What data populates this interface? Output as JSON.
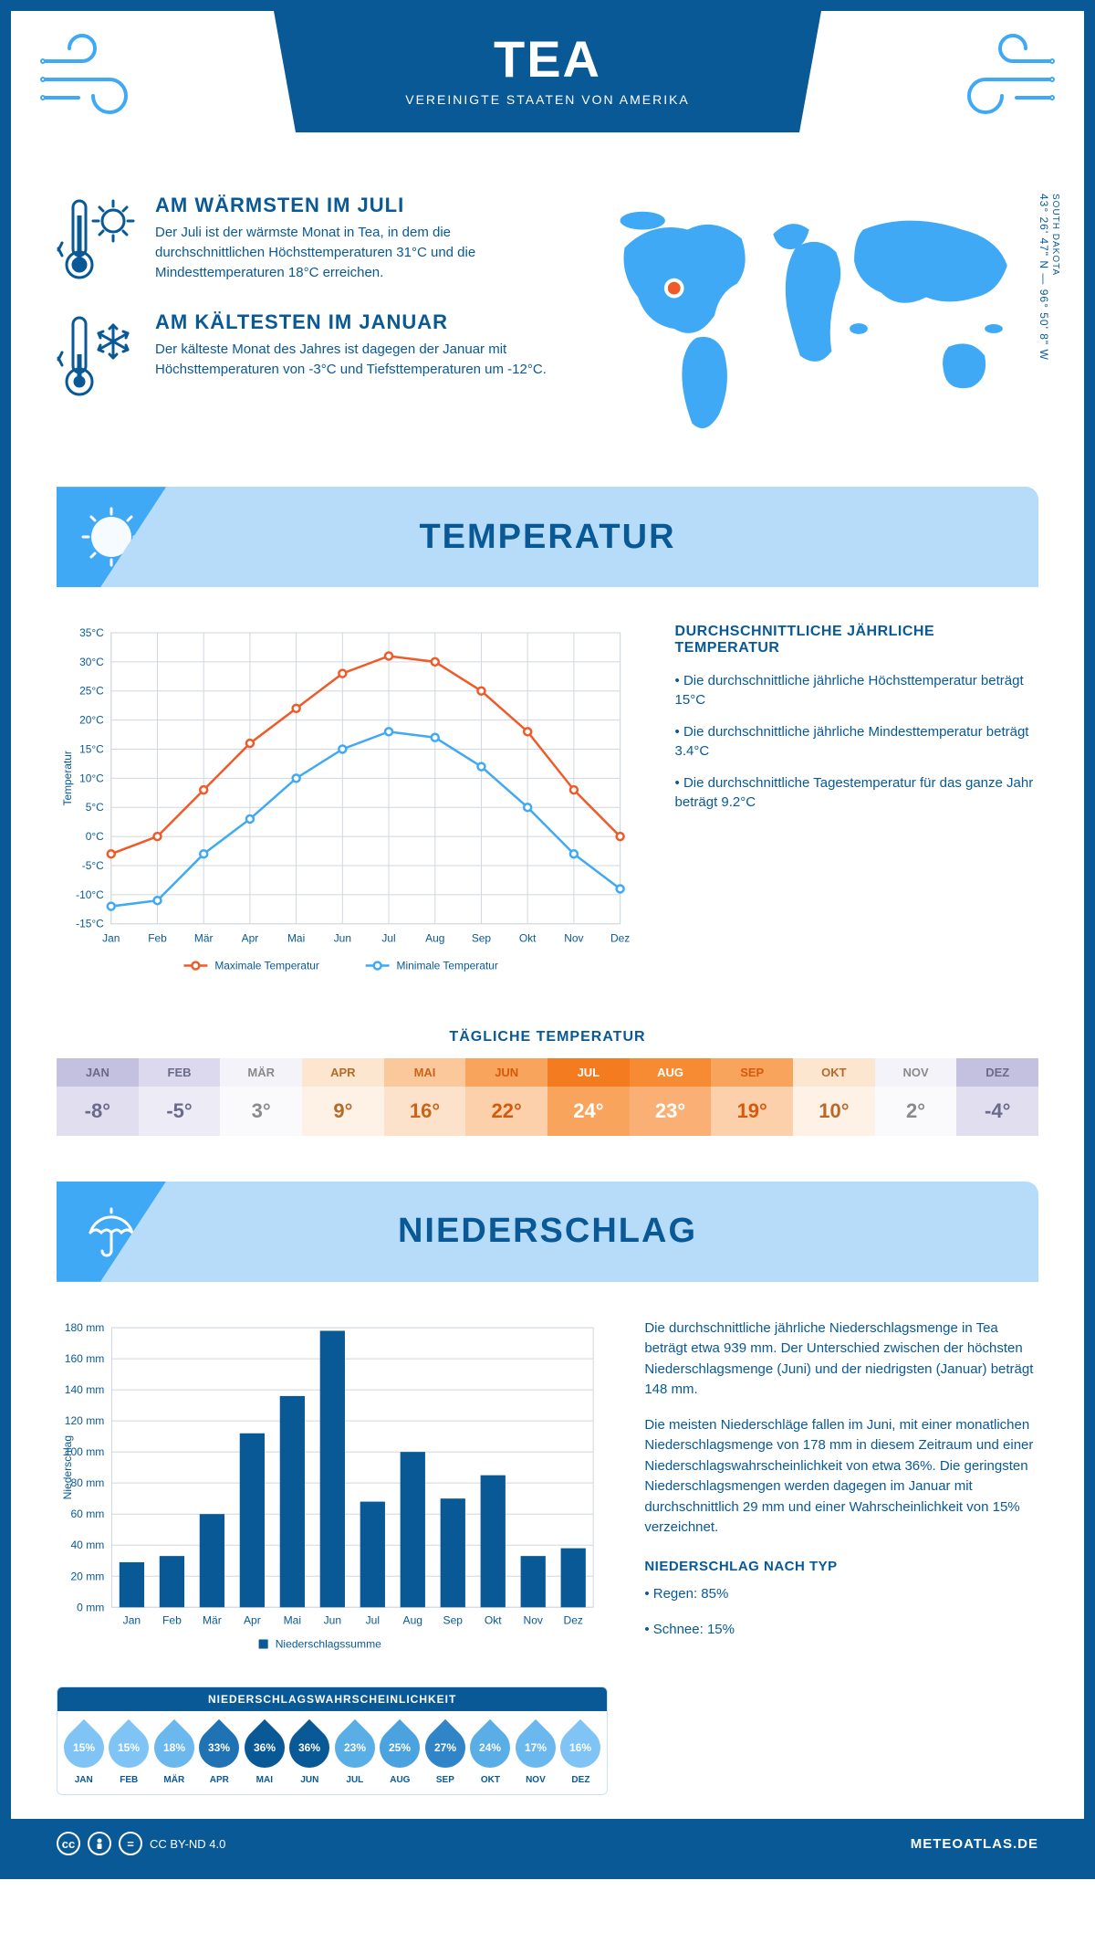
{
  "header": {
    "title": "TEA",
    "subtitle": "VEREINIGTE STAATEN VON AMERIKA"
  },
  "coords": {
    "lat": "43° 26' 47\" N",
    "lon": "96° 50' 8\" W",
    "region": "SOUTH DAKOTA"
  },
  "facts": {
    "warm": {
      "title": "AM WÄRMSTEN IM JULI",
      "body": "Der Juli ist der wärmste Monat in Tea, in dem die durchschnittlichen Höchsttemperaturen 31°C und die Mindesttemperaturen 18°C erreichen."
    },
    "cold": {
      "title": "AM KÄLTESTEN IM JANUAR",
      "body": "Der kälteste Monat des Jahres ist dagegen der Januar mit Höchsttemperaturen von -3°C und Tiefsttemperaturen um -12°C."
    }
  },
  "section_temp_title": "TEMPERATUR",
  "section_precip_title": "NIEDERSCHLAG",
  "months": [
    "Jan",
    "Feb",
    "Mär",
    "Apr",
    "Mai",
    "Jun",
    "Jul",
    "Aug",
    "Sep",
    "Okt",
    "Nov",
    "Dez"
  ],
  "months_upper": [
    "JAN",
    "FEB",
    "MÄR",
    "APR",
    "MAI",
    "JUN",
    "JUL",
    "AUG",
    "SEP",
    "OKT",
    "NOV",
    "DEZ"
  ],
  "temp_chart": {
    "type": "line",
    "ylabel": "Temperatur",
    "ylim": [
      -15,
      35
    ],
    "ytick_step": 5,
    "yunit": "°C",
    "series": [
      {
        "name": "Maximale Temperatur",
        "color": "#f05a28",
        "values": [
          -3,
          0,
          8,
          16,
          22,
          28,
          31,
          30,
          25,
          18,
          8,
          0
        ]
      },
      {
        "name": "Minimale Temperatur",
        "color": "#3fa9f5",
        "values": [
          -12,
          -11,
          -3,
          3,
          10,
          15,
          18,
          17,
          12,
          5,
          -3,
          -9
        ]
      }
    ],
    "grid_color": "#d0d7de",
    "background": "#ffffff",
    "legend_max": "Maximale Temperatur",
    "legend_min": "Minimale Temperatur"
  },
  "temp_text": {
    "heading": "DURCHSCHNITTLICHE JÄHRLICHE TEMPERATUR",
    "bullets": [
      "• Die durchschnittliche jährliche Höchsttemperatur beträgt 15°C",
      "• Die durchschnittliche jährliche Mindesttemperatur beträgt 3.4°C",
      "• Die durchschnittliche Tagestemperatur für das ganze Jahr beträgt 9.2°C"
    ]
  },
  "daily_title": "TÄGLICHE TEMPERATUR",
  "daily_temp": {
    "values": [
      "-8°",
      "-5°",
      "3°",
      "9°",
      "16°",
      "22°",
      "24°",
      "23°",
      "19°",
      "10°",
      "2°",
      "-4°"
    ],
    "head_colors": [
      "#c4c1e0",
      "#dcd9ee",
      "#f4f3f9",
      "#fde6d0",
      "#fbc89b",
      "#f9a45c",
      "#f47b20",
      "#f68b33",
      "#f9a45c",
      "#fde6d0",
      "#f4f3f9",
      "#c4c1e0"
    ],
    "body_colors": [
      "#e1def0",
      "#edebf6",
      "#faf9fc",
      "#fef2e6",
      "#fde2cb",
      "#fcd0ab",
      "#f9a45c",
      "#fab074",
      "#fcd0ab",
      "#fef2e6",
      "#faf9fc",
      "#e1def0"
    ],
    "text_colors": [
      "#6a6a8a",
      "#6a6a8a",
      "#8a8a8a",
      "#b56a2a",
      "#c9651a",
      "#d55a0d",
      "#ffffff",
      "#ffffff",
      "#d55a0d",
      "#b56a2a",
      "#8a8a8a",
      "#6a6a8a"
    ]
  },
  "precip_chart": {
    "type": "bar",
    "ylabel": "Niederschlag",
    "ylim": [
      0,
      180
    ],
    "ytick_step": 20,
    "yunit": " mm",
    "values": [
      29,
      33,
      60,
      112,
      136,
      178,
      68,
      100,
      70,
      85,
      33,
      38
    ],
    "bar_color": "#085996",
    "grid_color": "#d0d7de",
    "legend": "Niederschlagssumme"
  },
  "precip_text": {
    "p1": "Die durchschnittliche jährliche Niederschlagsmenge in Tea beträgt etwa 939 mm. Der Unterschied zwischen der höchsten Niederschlagsmenge (Juni) und der niedrigsten (Januar) beträgt 148 mm.",
    "p2": "Die meisten Niederschläge fallen im Juni, mit einer monatlichen Niederschlagsmenge von 178 mm in diesem Zeitraum und einer Niederschlagswahrscheinlichkeit von etwa 36%. Die geringsten Niederschlagsmengen werden dagegen im Januar mit durchschnittlich 29 mm und einer Wahrscheinlichkeit von 15% verzeichnet.",
    "by_type_head": "NIEDERSCHLAG NACH TYP",
    "by_type_1": "• Regen: 85%",
    "by_type_2": "• Schnee: 15%"
  },
  "prob": {
    "title": "NIEDERSCHLAGSWAHRSCHEINLICHKEIT",
    "values": [
      "15%",
      "15%",
      "18%",
      "33%",
      "36%",
      "36%",
      "23%",
      "25%",
      "27%",
      "24%",
      "17%",
      "16%"
    ],
    "colors": [
      "#7fc4f5",
      "#7fc4f5",
      "#6bb8ee",
      "#1f72b4",
      "#085996",
      "#085996",
      "#5aaee6",
      "#4aa3df",
      "#2f85c7",
      "#5aaee6",
      "#6bb8ee",
      "#7fc4f5"
    ]
  },
  "footer": {
    "license": "CC BY-ND 4.0",
    "brand": "METEOATLAS.DE"
  }
}
